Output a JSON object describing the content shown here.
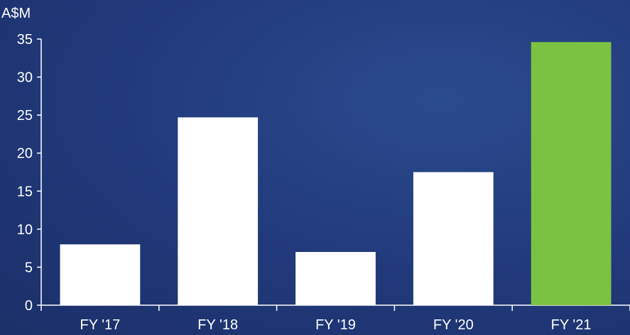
{
  "chart_data": {
    "type": "bar",
    "unit_label": "A$M",
    "categories": [
      "FY '17",
      "FY '18",
      "FY '19",
      "FY '20",
      "FY '21"
    ],
    "values": [
      8.0,
      24.7,
      7.0,
      17.5,
      34.6
    ],
    "bar_colors": [
      "#ffffff",
      "#ffffff",
      "#ffffff",
      "#ffffff",
      "#7cc242"
    ],
    "ylim": [
      0,
      35
    ],
    "yticks": [
      "0",
      "5",
      "10",
      "15",
      "20",
      "25",
      "30",
      "35"
    ],
    "grid": false,
    "legend": "none"
  }
}
